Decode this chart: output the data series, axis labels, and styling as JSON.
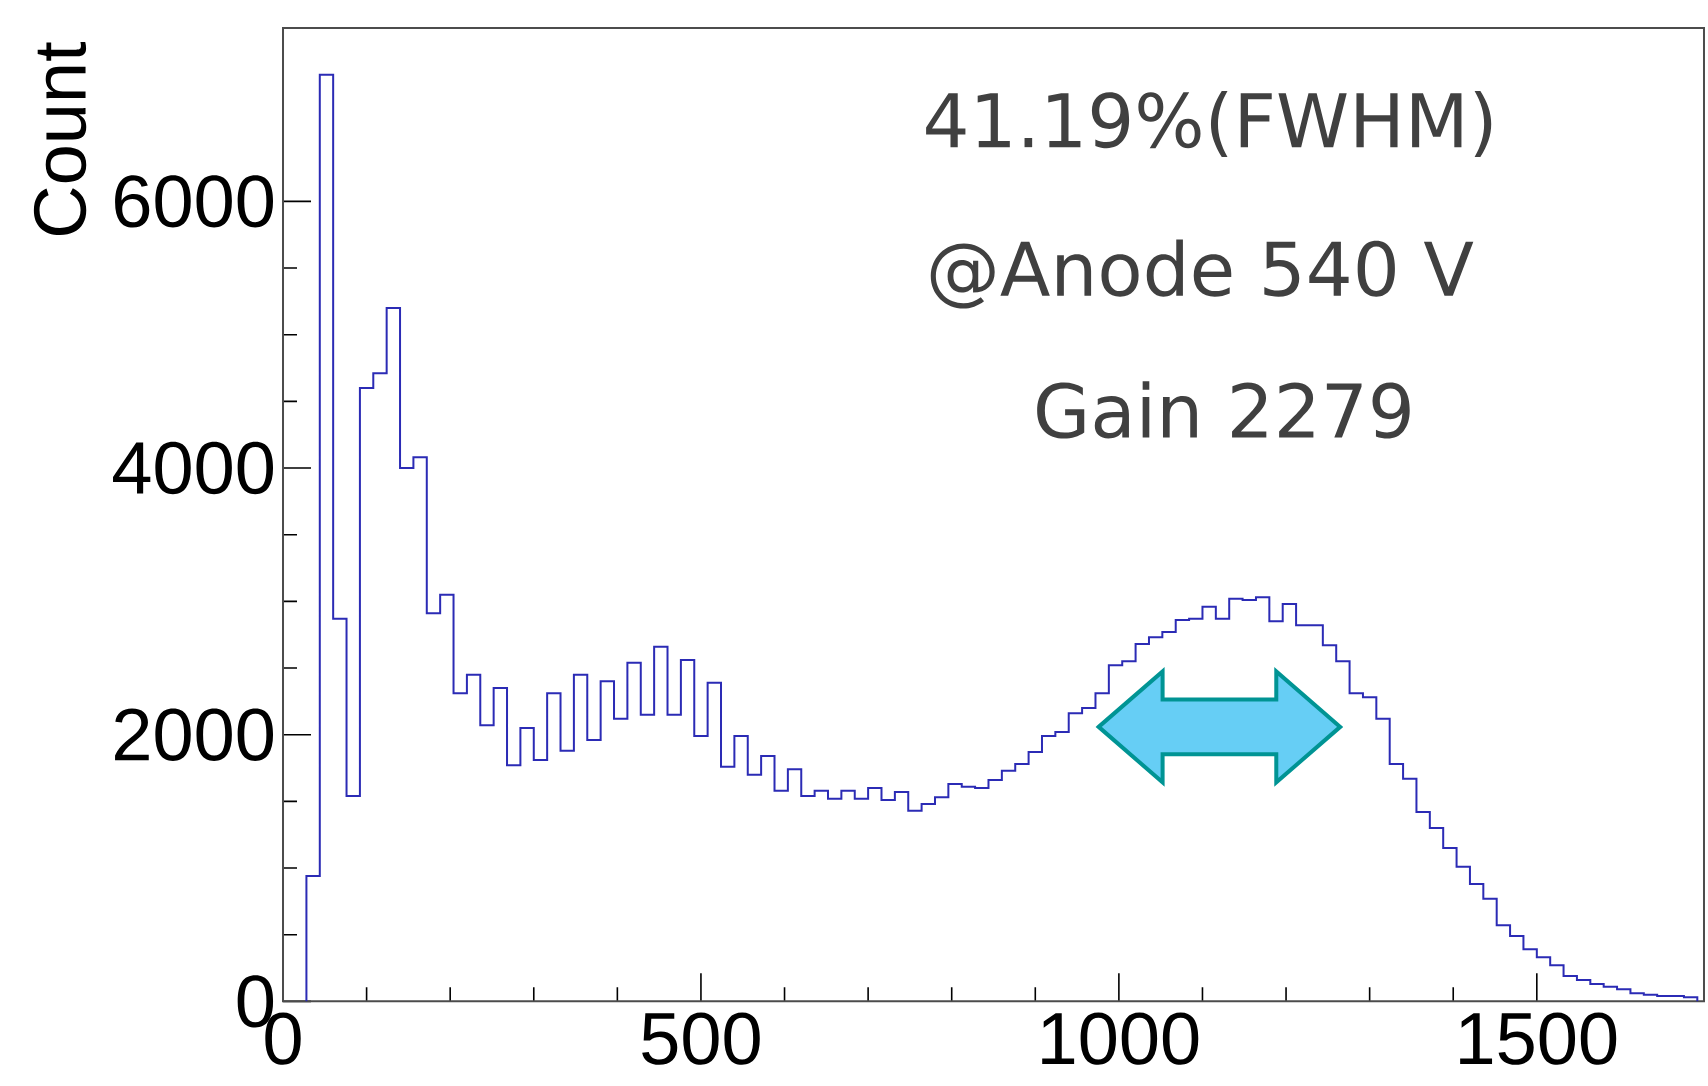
{
  "chart_data": {
    "type": "histogram",
    "ylabel": "Count",
    "color": "#2b2bb5",
    "annotations": [
      "41.19%(FWHM)",
      "@Anode 540 V",
      "Gain 2279"
    ],
    "xlim": [
      0,
      1700
    ],
    "ylim": [
      0,
      7300
    ],
    "xticks": [
      0,
      500,
      1000,
      1500
    ],
    "yticks": [
      0,
      2000,
      4000,
      6000
    ],
    "bins": [
      28,
      44,
      60,
      76,
      92,
      108,
      124,
      140,
      156,
      172,
      188,
      204,
      220,
      236,
      252,
      268,
      284,
      300,
      316,
      332,
      348,
      364,
      380,
      396,
      412,
      428,
      444,
      460,
      476,
      492,
      508,
      524,
      540,
      556,
      572,
      588,
      604,
      620,
      636,
      652,
      668,
      684,
      700,
      716,
      732,
      748,
      764,
      780,
      796,
      812,
      828,
      844,
      860,
      876,
      892,
      908,
      924,
      940,
      956,
      972,
      988,
      1004,
      1020,
      1036,
      1052,
      1068,
      1084,
      1100,
      1116,
      1132,
      1148,
      1164,
      1180,
      1196,
      1212,
      1228,
      1244,
      1260,
      1276,
      1292,
      1308,
      1324,
      1340,
      1356,
      1372,
      1388,
      1404,
      1420,
      1436,
      1452,
      1468,
      1484,
      1500,
      1516,
      1532,
      1548,
      1564,
      1580,
      1596,
      1612,
      1628,
      1644,
      1660,
      1676,
      1692
    ],
    "values": [
      940,
      6950,
      2870,
      1540,
      4600,
      4710,
      5200,
      4000,
      4080,
      2910,
      3050,
      2310,
      2450,
      2070,
      2350,
      1770,
      2050,
      1810,
      2310,
      1880,
      2450,
      1960,
      2400,
      2120,
      2540,
      2150,
      2660,
      2150,
      2560,
      1990,
      2390,
      1760,
      1990,
      1700,
      1840,
      1580,
      1740,
      1540,
      1580,
      1520,
      1580,
      1520,
      1600,
      1510,
      1570,
      1430,
      1480,
      1530,
      1630,
      1610,
      1600,
      1660,
      1730,
      1780,
      1870,
      1990,
      2020,
      2160,
      2200,
      2310,
      2520,
      2550,
      2680,
      2730,
      2770,
      2860,
      2870,
      2960,
      2870,
      3020,
      3010,
      3030,
      2850,
      2980,
      2820,
      2820,
      2670,
      2550,
      2310,
      2280,
      2120,
      1780,
      1670,
      1420,
      1300,
      1150,
      1010,
      880,
      770,
      570,
      490,
      390,
      330,
      270,
      190,
      160,
      130,
      110,
      90,
      60,
      50,
      40,
      40,
      30
    ]
  }
}
